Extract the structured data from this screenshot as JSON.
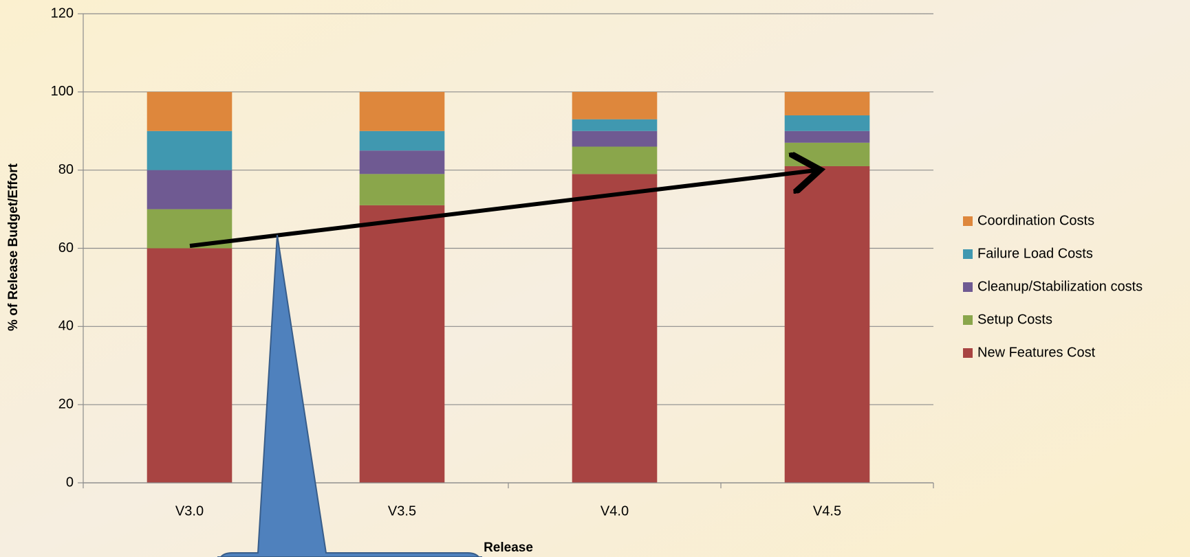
{
  "chart_data": {
    "type": "stacked_bar",
    "x_label": "Release",
    "y_label": "% of Release Budget/Effort",
    "categories": [
      "V3.0",
      "V3.5",
      "V4.0",
      "V4.5"
    ],
    "series": [
      {
        "name": "New Features Cost",
        "color": "#a84442",
        "values": [
          60,
          71,
          79,
          81
        ]
      },
      {
        "name": "Setup Costs",
        "color": "#8aa64b",
        "values": [
          10,
          8,
          7,
          6
        ]
      },
      {
        "name": "Cleanup/Stabilization costs",
        "color": "#6f5a92",
        "values": [
          10,
          6,
          4,
          3
        ]
      },
      {
        "name": "Failure Load Costs",
        "color": "#4098b0",
        "values": [
          10,
          5,
          3,
          4
        ]
      },
      {
        "name": "Coordination Costs",
        "color": "#de873c",
        "values": [
          10,
          10,
          7,
          6
        ]
      }
    ],
    "ylim": [
      0,
      120
    ],
    "yticks": [
      0,
      20,
      40,
      60,
      80,
      100,
      120
    ],
    "grid": true,
    "legend": "right"
  }
}
